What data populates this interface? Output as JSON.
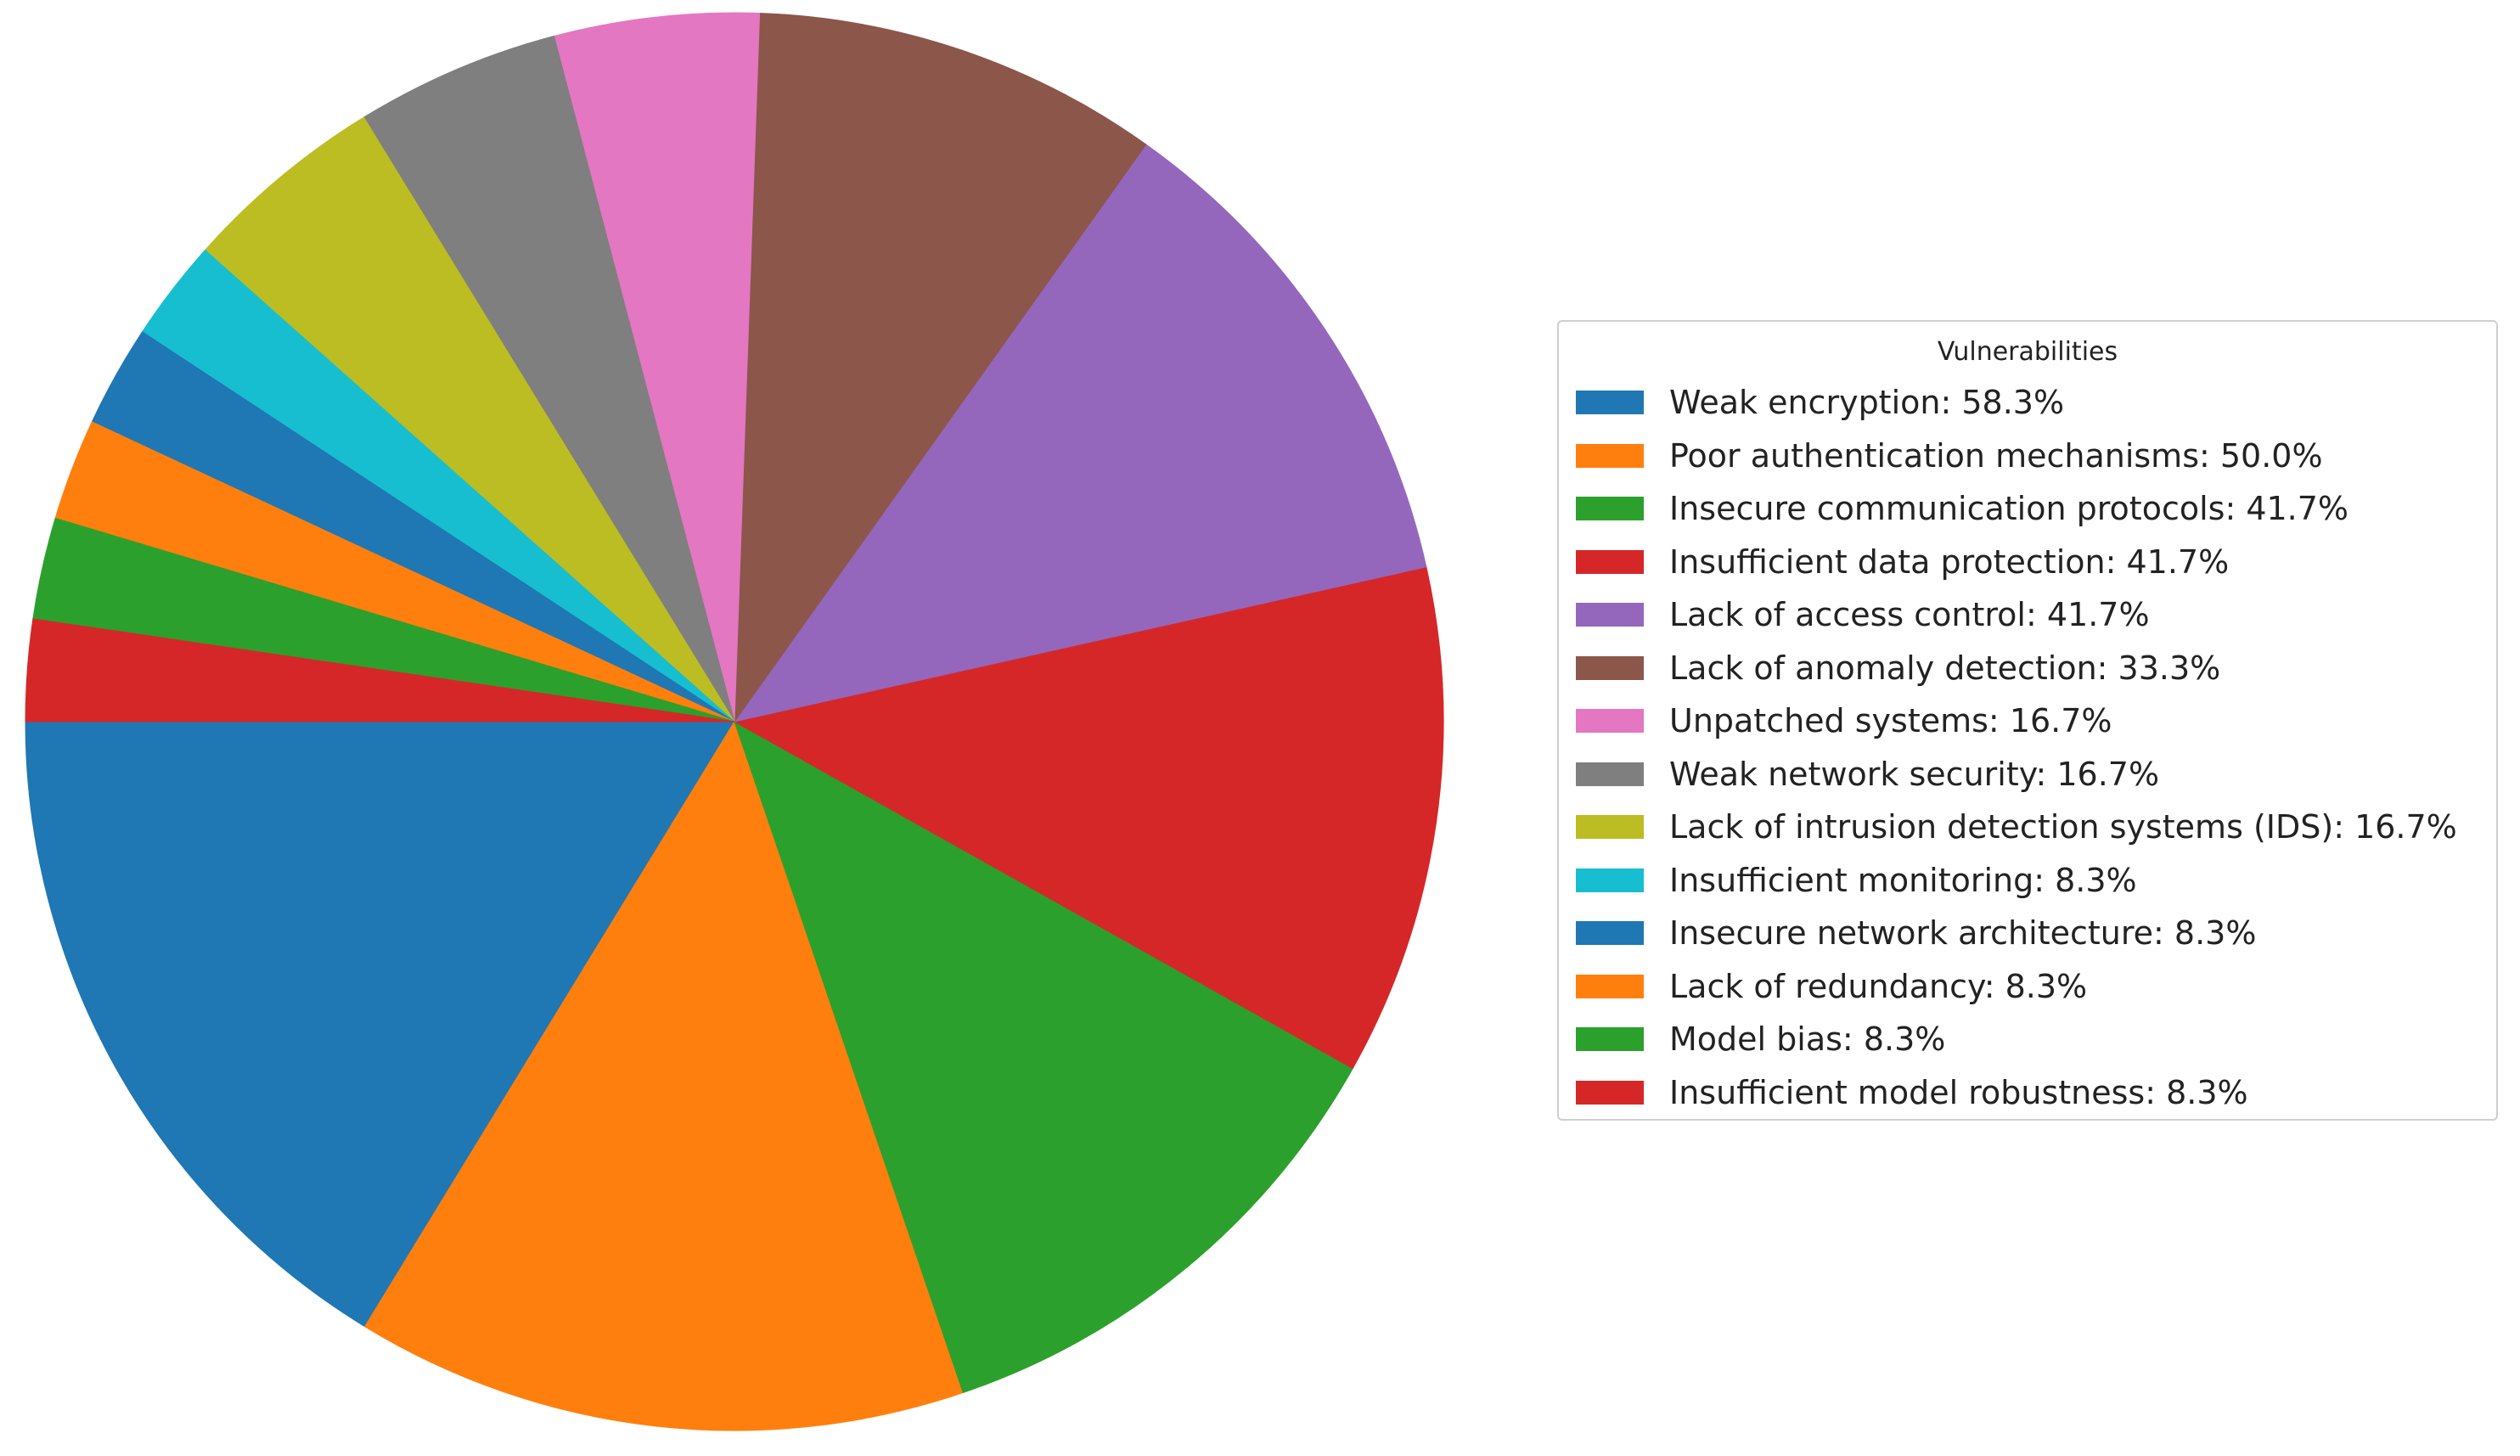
{
  "chart_data": {
    "type": "pie",
    "title": "",
    "legend_title": "Vulnerabilities",
    "legend_placement": "right",
    "start_angle_deg": 180,
    "direction": "counterclockwise",
    "slices": [
      {
        "label": "Weak encryption: 58.3%",
        "value": 58.3,
        "color": "#1f77b4"
      },
      {
        "label": "Poor authentication mechanisms: 50.0%",
        "value": 50.0,
        "color": "#ff7f0e"
      },
      {
        "label": "Insecure communication protocols: 41.7%",
        "value": 41.7,
        "color": "#2ca02c"
      },
      {
        "label": "Insufficient data protection: 41.7%",
        "value": 41.7,
        "color": "#d62728"
      },
      {
        "label": "Lack of access control: 41.7%",
        "value": 41.7,
        "color": "#9467bd"
      },
      {
        "label": "Lack of anomaly detection: 33.3%",
        "value": 33.3,
        "color": "#8c564b"
      },
      {
        "label": "Unpatched systems: 16.7%",
        "value": 16.7,
        "color": "#e377c2"
      },
      {
        "label": "Weak network security: 16.7%",
        "value": 16.7,
        "color": "#7f7f7f"
      },
      {
        "label": "Lack of intrusion detection systems (IDS): 16.7%",
        "value": 16.7,
        "color": "#bcbd22"
      },
      {
        "label": "Insufficient monitoring: 8.3%",
        "value": 8.3,
        "color": "#17becf"
      },
      {
        "label": "Insecure network architecture: 8.3%",
        "value": 8.3,
        "color": "#1f77b4"
      },
      {
        "label": "Lack of redundancy: 8.3%",
        "value": 8.3,
        "color": "#ff7f0e"
      },
      {
        "label": "Model bias: 8.3%",
        "value": 8.3,
        "color": "#2ca02c"
      },
      {
        "label": "Insufficient model robustness: 8.3%",
        "value": 8.3,
        "color": "#d62728"
      }
    ]
  }
}
